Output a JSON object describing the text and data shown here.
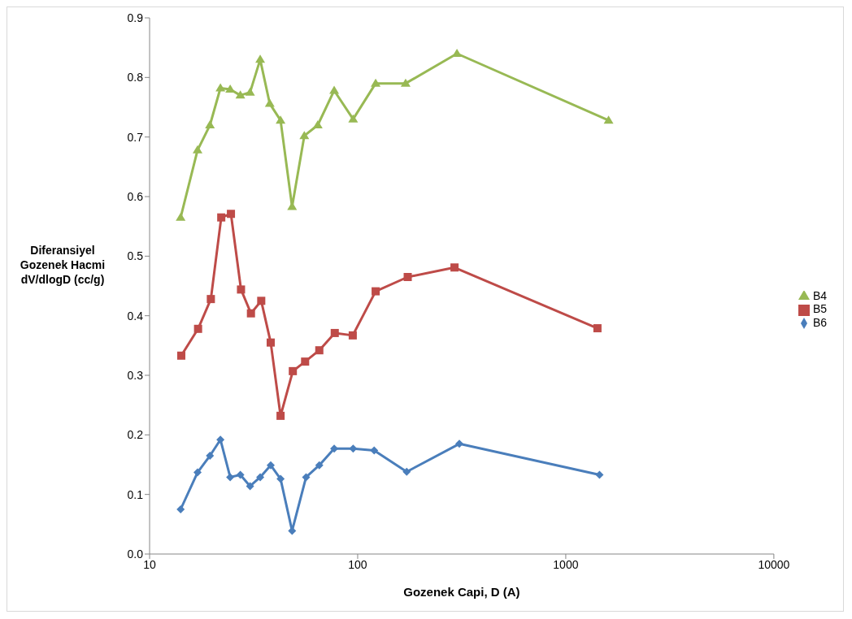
{
  "chart_data": {
    "type": "line",
    "xlabel": "Gozenek Capi, D (A)",
    "ylabel": "Diferansiyel Gozenek Hacmi dV/dlogD (cc/g)",
    "log": "x",
    "xlim": [
      10,
      10000
    ],
    "xticks": [
      10,
      100,
      1000,
      10000
    ],
    "ylim": [
      0,
      0.9
    ],
    "yticks": [
      {
        "value": 0,
        "label": "0.0"
      },
      0.1,
      0.2,
      0.3,
      0.4,
      0.5,
      0.6,
      0.7,
      0.8,
      0.9
    ],
    "grid": false,
    "legend": "right",
    "series": [
      {
        "name": "B6",
        "color": "#4a7ebb",
        "marker": "diamond",
        "x": [
          14.1,
          17.0,
          19.5,
          21.9,
          24.4,
          27.3,
          30.4,
          34.0,
          38.2,
          42.6,
          48.4,
          56.5,
          65.4,
          77.1,
          95.1,
          120,
          172,
          308,
          1453
        ],
        "values": [
          0.075,
          0.137,
          0.165,
          0.192,
          0.129,
          0.133,
          0.114,
          0.129,
          0.149,
          0.126,
          0.039,
          0.129,
          0.149,
          0.177,
          0.177,
          0.174,
          0.138,
          0.185,
          0.133
        ]
      },
      {
        "name": "B5",
        "color": "#be4b48",
        "marker": "square",
        "x": [
          14.2,
          17.1,
          19.7,
          22.1,
          24.6,
          27.5,
          30.7,
          34.4,
          38.2,
          42.6,
          48.8,
          55.9,
          65.4,
          77.6,
          94.7,
          122,
          174,
          292,
          1420
        ],
        "values": [
          0.333,
          0.378,
          0.428,
          0.565,
          0.571,
          0.444,
          0.404,
          0.425,
          0.355,
          0.232,
          0.307,
          0.323,
          0.342,
          0.371,
          0.367,
          0.441,
          0.465,
          0.481,
          0.379
        ]
      },
      {
        "name": "B4",
        "color": "#98b954",
        "marker": "triangle",
        "x": [
          14.1,
          17.0,
          19.5,
          21.9,
          24.4,
          27.3,
          30.4,
          34.0,
          37.8,
          42.6,
          48.4,
          55.4,
          64.3,
          77.1,
          95.1,
          122,
          170,
          300,
          1606
        ],
        "values": [
          0.565,
          0.678,
          0.72,
          0.782,
          0.78,
          0.77,
          0.775,
          0.83,
          0.756,
          0.728,
          0.583,
          0.702,
          0.72,
          0.778,
          0.73,
          0.79,
          0.79,
          0.84,
          0.728
        ]
      }
    ]
  }
}
